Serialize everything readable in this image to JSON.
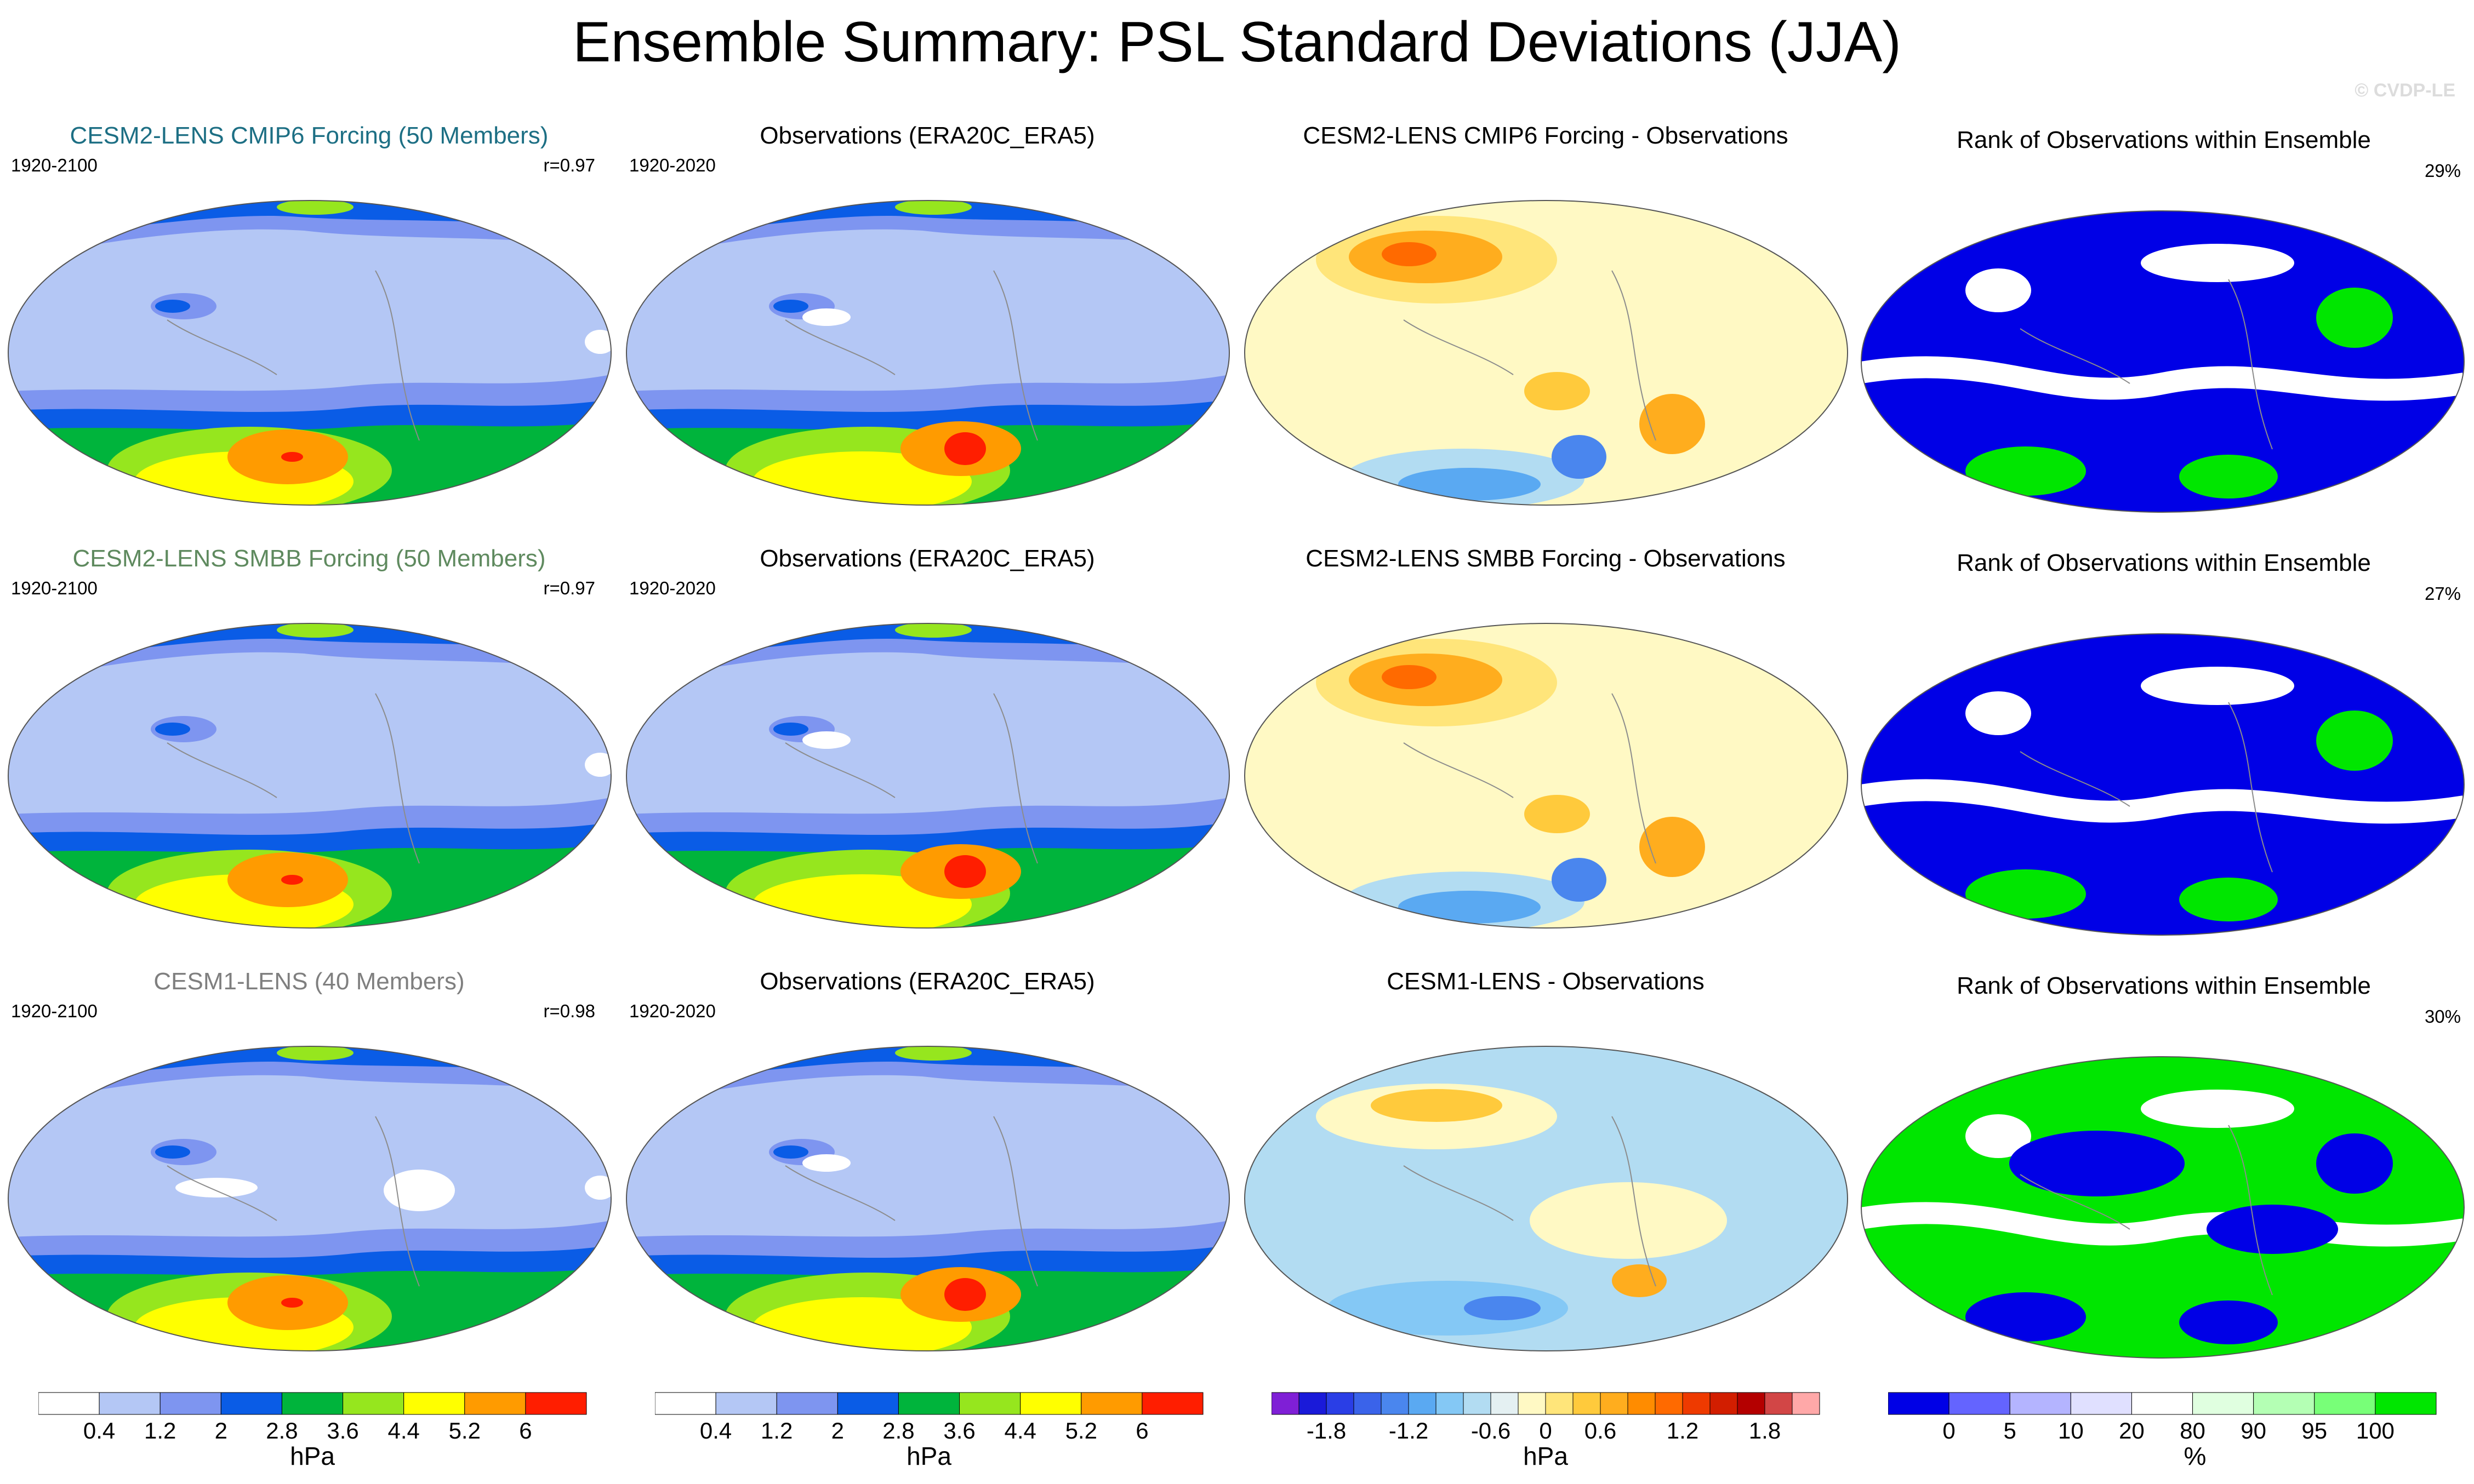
{
  "title": "Ensemble Summary: PSL Standard Deviations (JJA)",
  "watermark": "© CVDP-LE",
  "colors": {
    "title_cmip6": "#1d6f84",
    "title_smbb": "#5f8a5f",
    "title_cesm1": "#7f7f7f",
    "title_default": "#000000"
  },
  "rows": [
    {
      "model_title": "CESM2-LENS CMIP6 Forcing (50 Members)",
      "model_title_color": "#1d6f84",
      "model_years": "1920-2100",
      "model_r": "r=0.97",
      "obs_title": "Observations (ERA20C_ERA5)",
      "obs_years": "1920-2020",
      "diff_title": "CESM2-LENS CMIP6 Forcing - Observations",
      "rank_title": "Rank of Observations within Ensemble",
      "rank_pct": "29%"
    },
    {
      "model_title": "CESM2-LENS SMBB Forcing (50 Members)",
      "model_title_color": "#5f8a5f",
      "model_years": "1920-2100",
      "model_r": "r=0.97",
      "obs_title": "Observations (ERA20C_ERA5)",
      "obs_years": "1920-2020",
      "diff_title": "CESM2-LENS SMBB Forcing - Observations",
      "rank_title": "Rank of Observations within Ensemble",
      "rank_pct": "27%"
    },
    {
      "model_title": "CESM1-LENS (40 Members)",
      "model_title_color": "#7f7f7f",
      "model_years": "1920-2100",
      "model_r": "r=0.98",
      "obs_title": "Observations (ERA20C_ERA5)",
      "obs_years": "1920-2020",
      "diff_title": "CESM1-LENS - Observations",
      "rank_title": "Rank of Observations within Ensemble",
      "rank_pct": "30%"
    }
  ],
  "chart_data": [
    {
      "type": "colorbar",
      "name": "stddev-colorbar-1",
      "units": "hPa",
      "tick_labels": [
        "0.4",
        "1.2",
        "2",
        "2.8",
        "3.6",
        "4.4",
        "5.2",
        "6"
      ],
      "colors": [
        "#ffffff",
        "#b4c7f5",
        "#7e95f0",
        "#0a5ce6",
        "#00b43c",
        "#96e61e",
        "#ffff00",
        "#ff9b00",
        "#ff1e00"
      ]
    },
    {
      "type": "colorbar",
      "name": "stddev-colorbar-2",
      "units": "hPa",
      "tick_labels": [
        "0.4",
        "1.2",
        "2",
        "2.8",
        "3.6",
        "4.4",
        "5.2",
        "6"
      ],
      "colors": [
        "#ffffff",
        "#b4c7f5",
        "#7e95f0",
        "#0a5ce6",
        "#00b43c",
        "#96e61e",
        "#ffff00",
        "#ff9b00",
        "#ff1e00"
      ]
    },
    {
      "type": "colorbar",
      "name": "difference-colorbar",
      "units": "hPa",
      "tick_labels": [
        "-1.8",
        "-1.2",
        "-0.6",
        "0",
        "0.6",
        "1.2",
        "1.8"
      ],
      "colors": [
        "#7f1fd6",
        "#1a1ad9",
        "#2a3ee6",
        "#3a63ea",
        "#4a86ee",
        "#5aa9f2",
        "#84c8f5",
        "#b2dcf2",
        "#e4f0f2",
        "#fff9c4",
        "#ffe57a",
        "#ffca3c",
        "#ffad1e",
        "#ff8c00",
        "#ff6a00",
        "#ee3a00",
        "#d21e00",
        "#b40000",
        "#d24646",
        "#ffa8a8"
      ]
    },
    {
      "type": "colorbar",
      "name": "rank-colorbar",
      "units": "%",
      "tick_labels": [
        "0",
        "5",
        "10",
        "20",
        "80",
        "90",
        "95",
        "100"
      ],
      "colors": [
        "#0000e6",
        "#6464ff",
        "#b4b4ff",
        "#e0e0ff",
        "#ffffff",
        "#e0ffe0",
        "#b4ffb4",
        "#78ff78",
        "#00e600"
      ]
    }
  ]
}
